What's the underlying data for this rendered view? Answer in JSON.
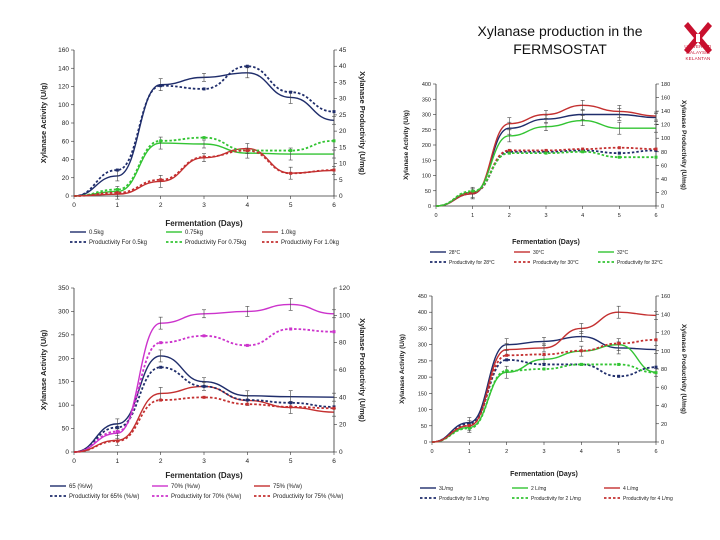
{
  "slide": {
    "title_line1": "Xylanase production in the",
    "title_line2": "FERMSOSTAT"
  },
  "logo": {
    "line1": "UNIVERSITI",
    "line2": "MALAYSIA",
    "line3": "KELANTAN",
    "color": "#c8102e"
  },
  "chart_data": [
    {
      "type": "line",
      "id": "moisture-content",
      "xlabel": "Fermentation (Days)",
      "ylabel": "Xylanase Activity (U/g)",
      "y2label": "Xylanase Productivity (U/mg)",
      "x": [
        0,
        1,
        2,
        3,
        4,
        5,
        6
      ],
      "xlim": [
        0,
        6
      ],
      "ylim": [
        0,
        160
      ],
      "yticks": [
        0,
        20,
        40,
        60,
        80,
        100,
        120,
        140,
        160
      ],
      "y2lim": [
        0,
        45
      ],
      "y2ticks": [
        0,
        5,
        10,
        15,
        20,
        25,
        30,
        35,
        40,
        45
      ],
      "series": [
        {
          "name": "0.5kg",
          "axis": "left",
          "style": "solid",
          "color": "#1f2d6b",
          "values": [
            0,
            22,
            122,
            130,
            135,
            108,
            83
          ]
        },
        {
          "name": "0.75kg",
          "axis": "left",
          "style": "solid",
          "color": "#33c433",
          "values": [
            0,
            5,
            58,
            57,
            47,
            46,
            46
          ]
        },
        {
          "name": "1.0kg",
          "axis": "left",
          "style": "solid",
          "color": "#c43030",
          "values": [
            0,
            2,
            16,
            42,
            52,
            25,
            28
          ]
        },
        {
          "name": "Productivity For 0.5kg",
          "axis": "right",
          "style": "dotted",
          "color": "#1f2d6b",
          "values": [
            0,
            8,
            34,
            33,
            40,
            32,
            26
          ]
        },
        {
          "name": "Productivity For 0.75kg",
          "axis": "right",
          "style": "dotted",
          "color": "#33c433",
          "values": [
            0,
            2,
            17,
            18,
            14,
            14,
            17
          ]
        },
        {
          "name": "Productivity For 1.0kg",
          "axis": "right",
          "style": "dotted",
          "color": "#c43030",
          "values": [
            0,
            1,
            5,
            12,
            14,
            7,
            8
          ]
        }
      ],
      "legend": [
        "0.5kg",
        "0.75kg",
        "1.0kg",
        "Productivity For 0.5kg",
        "Productivity For 0.75kg",
        "Productivity For 1.0kg"
      ]
    },
    {
      "type": "line",
      "id": "temperature",
      "xlabel": "Fermentation (Days)",
      "ylabel": "Xylanase Activity (U/g)",
      "y2label": "Xylanase Productivity (U/mg)",
      "x": [
        0,
        1,
        2,
        3,
        4,
        5,
        6
      ],
      "xlim": [
        0,
        6
      ],
      "ylim": [
        0,
        400
      ],
      "yticks": [
        0,
        50,
        100,
        150,
        200,
        250,
        300,
        350,
        400
      ],
      "y2lim": [
        0,
        180
      ],
      "y2ticks": [
        0,
        20,
        40,
        60,
        80,
        100,
        120,
        140,
        160,
        180
      ],
      "series": [
        {
          "name": "28°C",
          "axis": "left",
          "style": "solid",
          "color": "#1f2d6b",
          "values": [
            0,
            40,
            255,
            285,
            300,
            300,
            290
          ]
        },
        {
          "name": "30°C",
          "axis": "left",
          "style": "solid",
          "color": "#c43030",
          "values": [
            0,
            40,
            270,
            300,
            330,
            310,
            295
          ]
        },
        {
          "name": "32°C",
          "axis": "left",
          "style": "solid",
          "color": "#33c433",
          "values": [
            0,
            45,
            230,
            260,
            280,
            255,
            255
          ]
        },
        {
          "name": "Productivity for 28°C",
          "axis": "right",
          "style": "dotted",
          "color": "#1f2d6b",
          "values": [
            0,
            20,
            80,
            80,
            82,
            78,
            82
          ]
        },
        {
          "name": "Productivity for 30°C",
          "axis": "right",
          "style": "dotted",
          "color": "#c43030",
          "values": [
            0,
            20,
            82,
            82,
            84,
            86,
            84
          ]
        },
        {
          "name": "Productivity for 32°C",
          "axis": "right",
          "style": "dotted",
          "color": "#33c433",
          "values": [
            0,
            22,
            78,
            78,
            80,
            72,
            72
          ]
        }
      ],
      "legend": [
        "28°C",
        "30°C",
        "32°C",
        "Productivity for 28°C",
        "Productivity for 30°C",
        "Productivity for 32°C"
      ]
    },
    {
      "type": "line",
      "id": "moisture-ratio",
      "xlabel": "Fermentation (Days)",
      "ylabel": "Xylanase Activity (U/g)",
      "y2label": "Xylanase Productivity (U/mg)",
      "x": [
        0,
        1,
        2,
        3,
        4,
        5,
        6
      ],
      "xlim": [
        0,
        6
      ],
      "ylim": [
        0,
        350
      ],
      "yticks": [
        0,
        50,
        100,
        150,
        200,
        250,
        300,
        350
      ],
      "y2lim": [
        0,
        120
      ],
      "y2ticks": [
        0,
        20,
        40,
        60,
        80,
        100,
        120
      ],
      "series": [
        {
          "name": "65 (%/w)",
          "axis": "left",
          "style": "solid",
          "color": "#1f2d6b",
          "values": [
            0,
            60,
            205,
            150,
            120,
            118,
            117
          ]
        },
        {
          "name": "70% (%/w)",
          "axis": "left",
          "style": "solid",
          "color": "#cc33cc",
          "values": [
            0,
            40,
            275,
            295,
            300,
            315,
            295
          ]
        },
        {
          "name": "75% (%/w)",
          "axis": "left",
          "style": "solid",
          "color": "#c43030",
          "values": [
            0,
            25,
            125,
            140,
            110,
            95,
            85
          ]
        },
        {
          "name": "Productivity for 65% (%/w)",
          "axis": "right",
          "style": "dotted",
          "color": "#1f2d6b",
          "values": [
            0,
            18,
            62,
            48,
            38,
            36,
            33
          ]
        },
        {
          "name": "Productivity for 70% (%/w)",
          "axis": "right",
          "style": "dotted",
          "color": "#cc33cc",
          "values": [
            0,
            15,
            80,
            85,
            78,
            90,
            88
          ]
        },
        {
          "name": "Productivity for 75% (%/w)",
          "axis": "right",
          "style": "dotted",
          "color": "#c43030",
          "values": [
            0,
            8,
            38,
            40,
            35,
            33,
            32
          ]
        }
      ],
      "legend": [
        "65 (%/w)",
        "70% (%/w)",
        "75% (%/w)",
        "Productivity for 65% (%/w)",
        "Productivity for 70% (%/w)",
        "Productivity for 75% (%/w)"
      ]
    },
    {
      "type": "line",
      "id": "aeration",
      "xlabel": "Fermentation (Days)",
      "ylabel": "Xylanase Activity (U/g)",
      "y2label": "Xylanase Productivity (U/mg)",
      "x": [
        0,
        1,
        2,
        3,
        4,
        5,
        6
      ],
      "xlim": [
        0,
        6
      ],
      "ylim": [
        0,
        450
      ],
      "yticks": [
        0,
        50,
        100,
        150,
        200,
        250,
        300,
        350,
        400,
        450
      ],
      "y2lim": [
        0,
        160
      ],
      "y2ticks": [
        0,
        20,
        40,
        60,
        80,
        100,
        120,
        140,
        160
      ],
      "series": [
        {
          "name": "3L/mg",
          "axis": "left",
          "style": "solid",
          "color": "#1f2d6b",
          "values": [
            0,
            60,
            300,
            310,
            325,
            290,
            285
          ]
        },
        {
          "name": "2 L/mg",
          "axis": "left",
          "style": "solid",
          "color": "#33c433",
          "values": [
            0,
            45,
            215,
            255,
            280,
            300,
            215
          ]
        },
        {
          "name": "4 L/mg",
          "axis": "left",
          "style": "solid",
          "color": "#c43030",
          "values": [
            0,
            50,
            285,
            290,
            350,
            400,
            390
          ]
        },
        {
          "name": "Productivity for 3 L/mg",
          "axis": "right",
          "style": "dotted",
          "color": "#1f2d6b",
          "values": [
            0,
            20,
            90,
            85,
            85,
            72,
            82
          ]
        },
        {
          "name": "Productivity for 2 L/mg",
          "axis": "right",
          "style": "dotted",
          "color": "#33c433",
          "values": [
            0,
            15,
            78,
            80,
            85,
            85,
            76
          ]
        },
        {
          "name": "Productivity for 4 L/mg",
          "axis": "right",
          "style": "dotted",
          "color": "#c43030",
          "values": [
            0,
            18,
            95,
            96,
            100,
            108,
            112
          ]
        }
      ],
      "legend": [
        "3L/mg",
        "2 L/mg",
        "4 L/mg",
        "Productivity for 3 L/mg",
        "Productivity for 2 L/mg",
        "Productivity for 4 L/mg"
      ]
    }
  ]
}
